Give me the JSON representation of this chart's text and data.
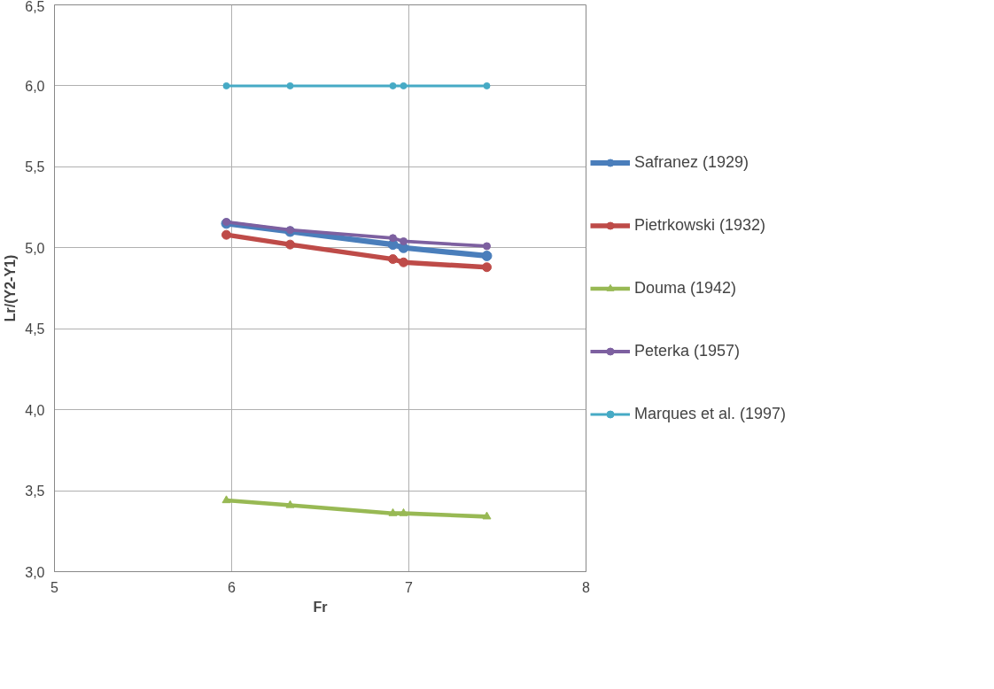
{
  "chart_data": {
    "type": "line",
    "xlabel": "Fr",
    "ylabel": "Lr/(Y2-Y1)",
    "xlim": [
      5,
      8
    ],
    "xticks": [
      5,
      6,
      7,
      8
    ],
    "ylim": [
      3.0,
      6.5
    ],
    "yticks": [
      {
        "value": 3.0,
        "label": "3,0"
      },
      {
        "value": 3.5,
        "label": "3,5"
      },
      {
        "value": 4.0,
        "label": "4,0"
      },
      {
        "value": 4.5,
        "label": "4,5"
      },
      {
        "value": 5.0,
        "label": "5,0"
      },
      {
        "value": 5.5,
        "label": "5,5"
      },
      {
        "value": 6.0,
        "label": "6,0"
      },
      {
        "value": 6.5,
        "label": "6,5"
      }
    ],
    "grid": true,
    "legend": "right",
    "marker": "circle",
    "line_style": "solid",
    "x": [
      5.97,
      6.33,
      6.91,
      6.97,
      7.44
    ],
    "series": [
      {
        "name": "Safranez (1929)",
        "color": "#4a7ebb",
        "values": [
          5.15,
          5.1,
          5.02,
          5.0,
          4.95
        ]
      },
      {
        "name": "Pietrkowski (1932)",
        "color": "#be4b48",
        "values": [
          5.08,
          5.02,
          4.93,
          4.91,
          4.88
        ]
      },
      {
        "name": "Douma (1942)",
        "color": "#98b954",
        "marker": "triangle",
        "values": [
          3.44,
          3.41,
          3.36,
          3.36,
          3.34
        ]
      },
      {
        "name": "Peterka (1957)",
        "color": "#7d60a0",
        "values": [
          5.16,
          5.11,
          5.06,
          5.04,
          5.01
        ]
      },
      {
        "name": "Marques et al. (1997)",
        "color": "#46aac5",
        "values": [
          6.0,
          6.0,
          6.0,
          6.0,
          6.0
        ]
      }
    ]
  }
}
